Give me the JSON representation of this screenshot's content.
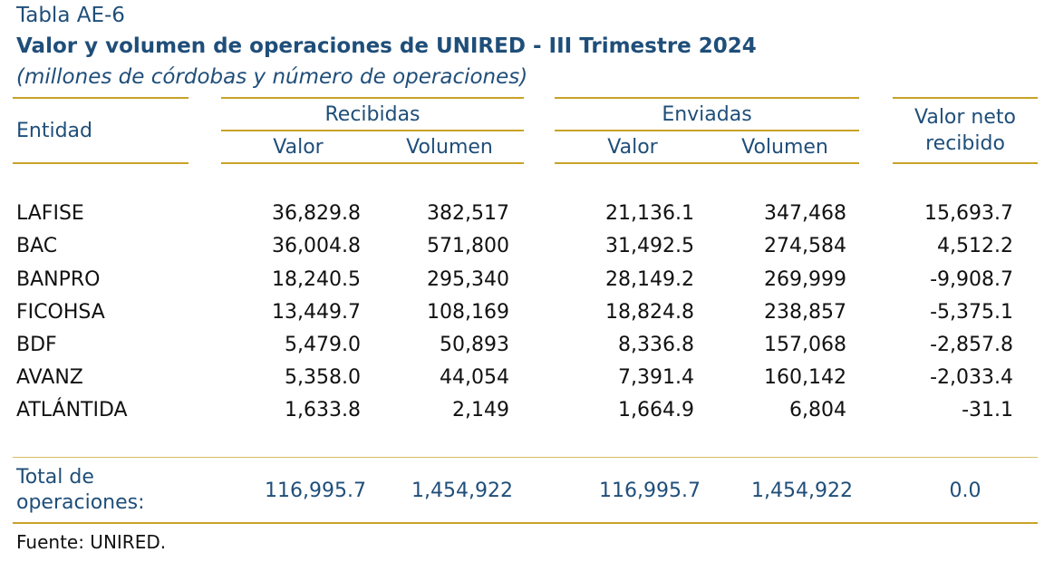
{
  "table_label": "Tabla AE-6",
  "title": "Valor y volumen de operaciones de UNIRED - III Trimestre 2024",
  "units": "(millones de córdobas y número de operaciones)",
  "headers": {
    "entity": "Entidad",
    "received": "Recibidas",
    "sent": "Enviadas",
    "value": "Valor",
    "volume": "Volumen",
    "net_line1": "Valor neto",
    "net_line2": "recibido"
  },
  "rows": [
    {
      "entity": "LAFISE",
      "rec_value": "36,829.8",
      "rec_volume": "382,517",
      "sent_value": "21,136.1",
      "sent_volume": "347,468",
      "net": "15,693.7"
    },
    {
      "entity": "BAC",
      "rec_value": "36,004.8",
      "rec_volume": "571,800",
      "sent_value": "31,492.5",
      "sent_volume": "274,584",
      "net": "4,512.2"
    },
    {
      "entity": "BANPRO",
      "rec_value": "18,240.5",
      "rec_volume": "295,340",
      "sent_value": "28,149.2",
      "sent_volume": "269,999",
      "net": "-9,908.7"
    },
    {
      "entity": "FICOHSA",
      "rec_value": "13,449.7",
      "rec_volume": "108,169",
      "sent_value": "18,824.8",
      "sent_volume": "238,857",
      "net": "-5,375.1"
    },
    {
      "entity": "BDF",
      "rec_value": "5,479.0",
      "rec_volume": "50,893",
      "sent_value": "8,336.8",
      "sent_volume": "157,068",
      "net": "-2,857.8"
    },
    {
      "entity": "AVANZ",
      "rec_value": "5,358.0",
      "rec_volume": "44,054",
      "sent_value": "7,391.4",
      "sent_volume": "160,142",
      "net": "-2,033.4"
    },
    {
      "entity": "ATLÁNTIDA",
      "rec_value": "1,633.8",
      "rec_volume": "2,149",
      "sent_value": "1,664.9",
      "sent_volume": "6,804",
      "net": "-31.1"
    }
  ],
  "total": {
    "label_line1": "Total de",
    "label_line2": "operaciones:",
    "rec_value": "116,995.7",
    "rec_volume": "1,454,922",
    "sent_value": "116,995.7",
    "sent_volume": "1,454,922",
    "net": "0.0"
  },
  "source": "Fuente: UNIRED.",
  "colors": {
    "heading_blue": "#1f4e79",
    "rule_gold": "#c9a227",
    "body_text": "#111111"
  }
}
